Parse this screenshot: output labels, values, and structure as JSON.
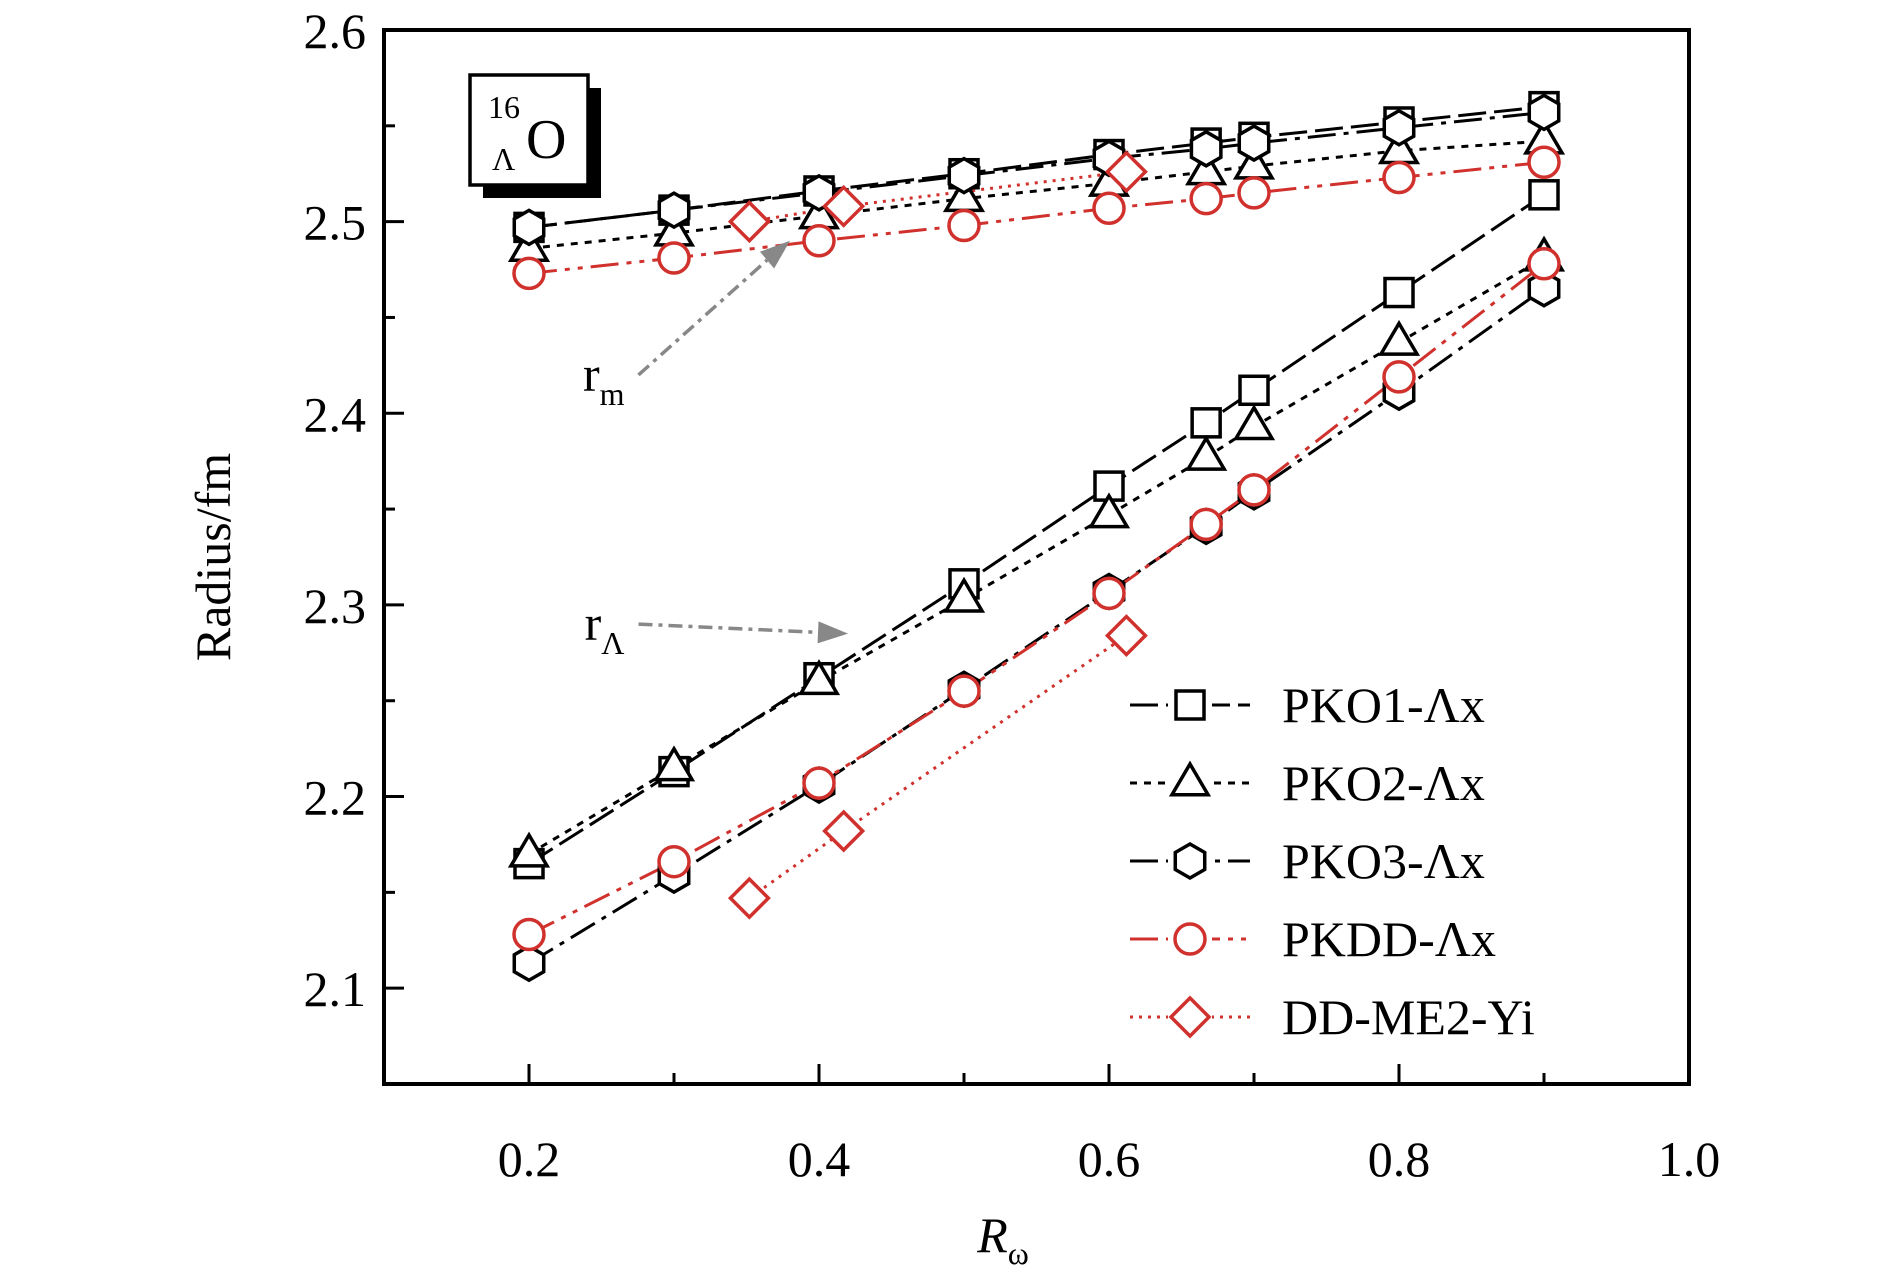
{
  "chart_data": {
    "type": "line",
    "xlabel_main": "R",
    "xlabel_sub": "ω",
    "ylabel": "Radius/fm",
    "xlim": [
      0.1,
      1.0
    ],
    "ylim": [
      2.05,
      2.6
    ],
    "xticks": [
      0.2,
      0.4,
      0.6,
      0.8,
      1.0
    ],
    "xtick_labels": [
      "0.2",
      "0.4",
      "0.6",
      "0.8",
      "1.0"
    ],
    "yticks": [
      2.1,
      2.2,
      2.3,
      2.4,
      2.5,
      2.6
    ],
    "ytick_labels": [
      "2.1",
      "2.2",
      "2.3",
      "2.4",
      "2.5",
      "2.6"
    ],
    "grid": false,
    "legend_position": "bottom-right",
    "nucleus_label": {
      "mass": "16",
      "sub": "Λ",
      "element": "O"
    },
    "annotations": [
      {
        "main": "r",
        "sub": "m",
        "label_at": [
          0.27,
          2.42
        ],
        "points_to": [
          0.38,
          2.49
        ]
      },
      {
        "main": "r",
        "sub": "Λ",
        "label_at": [
          0.27,
          2.29
        ],
        "points_to": [
          0.42,
          2.285
        ]
      }
    ],
    "series": [
      {
        "name": "PKO1-Λx",
        "marker": "square",
        "color": "#000000",
        "dash": "28 8",
        "groups": [
          {
            "x": [
              0.2,
              0.3,
              0.4,
              0.5,
              0.6,
              0.667,
              0.7,
              0.8,
              0.9
            ],
            "y": [
              2.497,
              2.506,
              2.516,
              2.525,
              2.535,
              2.541,
              2.544,
              2.552,
              2.56
            ]
          },
          {
            "x": [
              0.2,
              0.3,
              0.4,
              0.5,
              0.6,
              0.667,
              0.7,
              0.8,
              0.9
            ],
            "y": [
              2.165,
              2.213,
              2.262,
              2.311,
              2.362,
              2.395,
              2.412,
              2.463,
              2.514
            ]
          }
        ]
      },
      {
        "name": "PKO2-Λx",
        "marker": "triangle",
        "color": "#000000",
        "dash": "7 7",
        "groups": [
          {
            "x": [
              0.2,
              0.3,
              0.4,
              0.5,
              0.6,
              0.667,
              0.7,
              0.8,
              0.9
            ],
            "y": [
              2.486,
              2.494,
              2.503,
              2.512,
              2.52,
              2.526,
              2.529,
              2.537,
              2.542
            ]
          },
          {
            "x": [
              0.2,
              0.3,
              0.4,
              0.5,
              0.6,
              0.667,
              0.7,
              0.8,
              0.9
            ],
            "y": [
              2.17,
              2.215,
              2.26,
              2.303,
              2.347,
              2.377,
              2.393,
              2.437,
              2.481
            ]
          }
        ]
      },
      {
        "name": "PKO3-Λx",
        "marker": "hexagon",
        "color": "#000000",
        "dash": "28 8 5 8",
        "groups": [
          {
            "x": [
              0.2,
              0.3,
              0.4,
              0.5,
              0.6,
              0.667,
              0.7,
              0.8,
              0.9
            ],
            "y": [
              2.497,
              2.506,
              2.515,
              2.524,
              2.533,
              2.538,
              2.541,
              2.549,
              2.557
            ]
          },
          {
            "x": [
              0.2,
              0.3,
              0.4,
              0.5,
              0.6,
              0.667,
              0.7,
              0.8,
              0.9
            ],
            "y": [
              2.113,
              2.159,
              2.206,
              2.256,
              2.307,
              2.341,
              2.359,
              2.411,
              2.465
            ]
          }
        ]
      },
      {
        "name": "PKDD-Λx",
        "marker": "circle",
        "color": "#d0312d",
        "dash": "28 8 5 8 5 8",
        "groups": [
          {
            "x": [
              0.2,
              0.3,
              0.4,
              0.5,
              0.6,
              0.667,
              0.7,
              0.8,
              0.9
            ],
            "y": [
              2.473,
              2.481,
              2.49,
              2.498,
              2.507,
              2.512,
              2.515,
              2.523,
              2.531
            ]
          },
          {
            "x": [
              0.2,
              0.3,
              0.4,
              0.5,
              0.6,
              0.667,
              0.7,
              0.8,
              0.9
            ],
            "y": [
              2.128,
              2.166,
              2.207,
              2.255,
              2.306,
              2.342,
              2.36,
              2.419,
              2.478
            ]
          }
        ]
      },
      {
        "name": "DD-ME2-Yi",
        "marker": "diamond",
        "color": "#d0312d",
        "dash": "3 6",
        "groups": [
          {
            "x": [
              0.352,
              0.417,
              0.612
            ],
            "y": [
              2.5,
              2.508,
              2.526
            ]
          },
          {
            "x": [
              0.352,
              0.417,
              0.612
            ],
            "y": [
              2.147,
              2.182,
              2.284
            ]
          }
        ]
      }
    ]
  }
}
